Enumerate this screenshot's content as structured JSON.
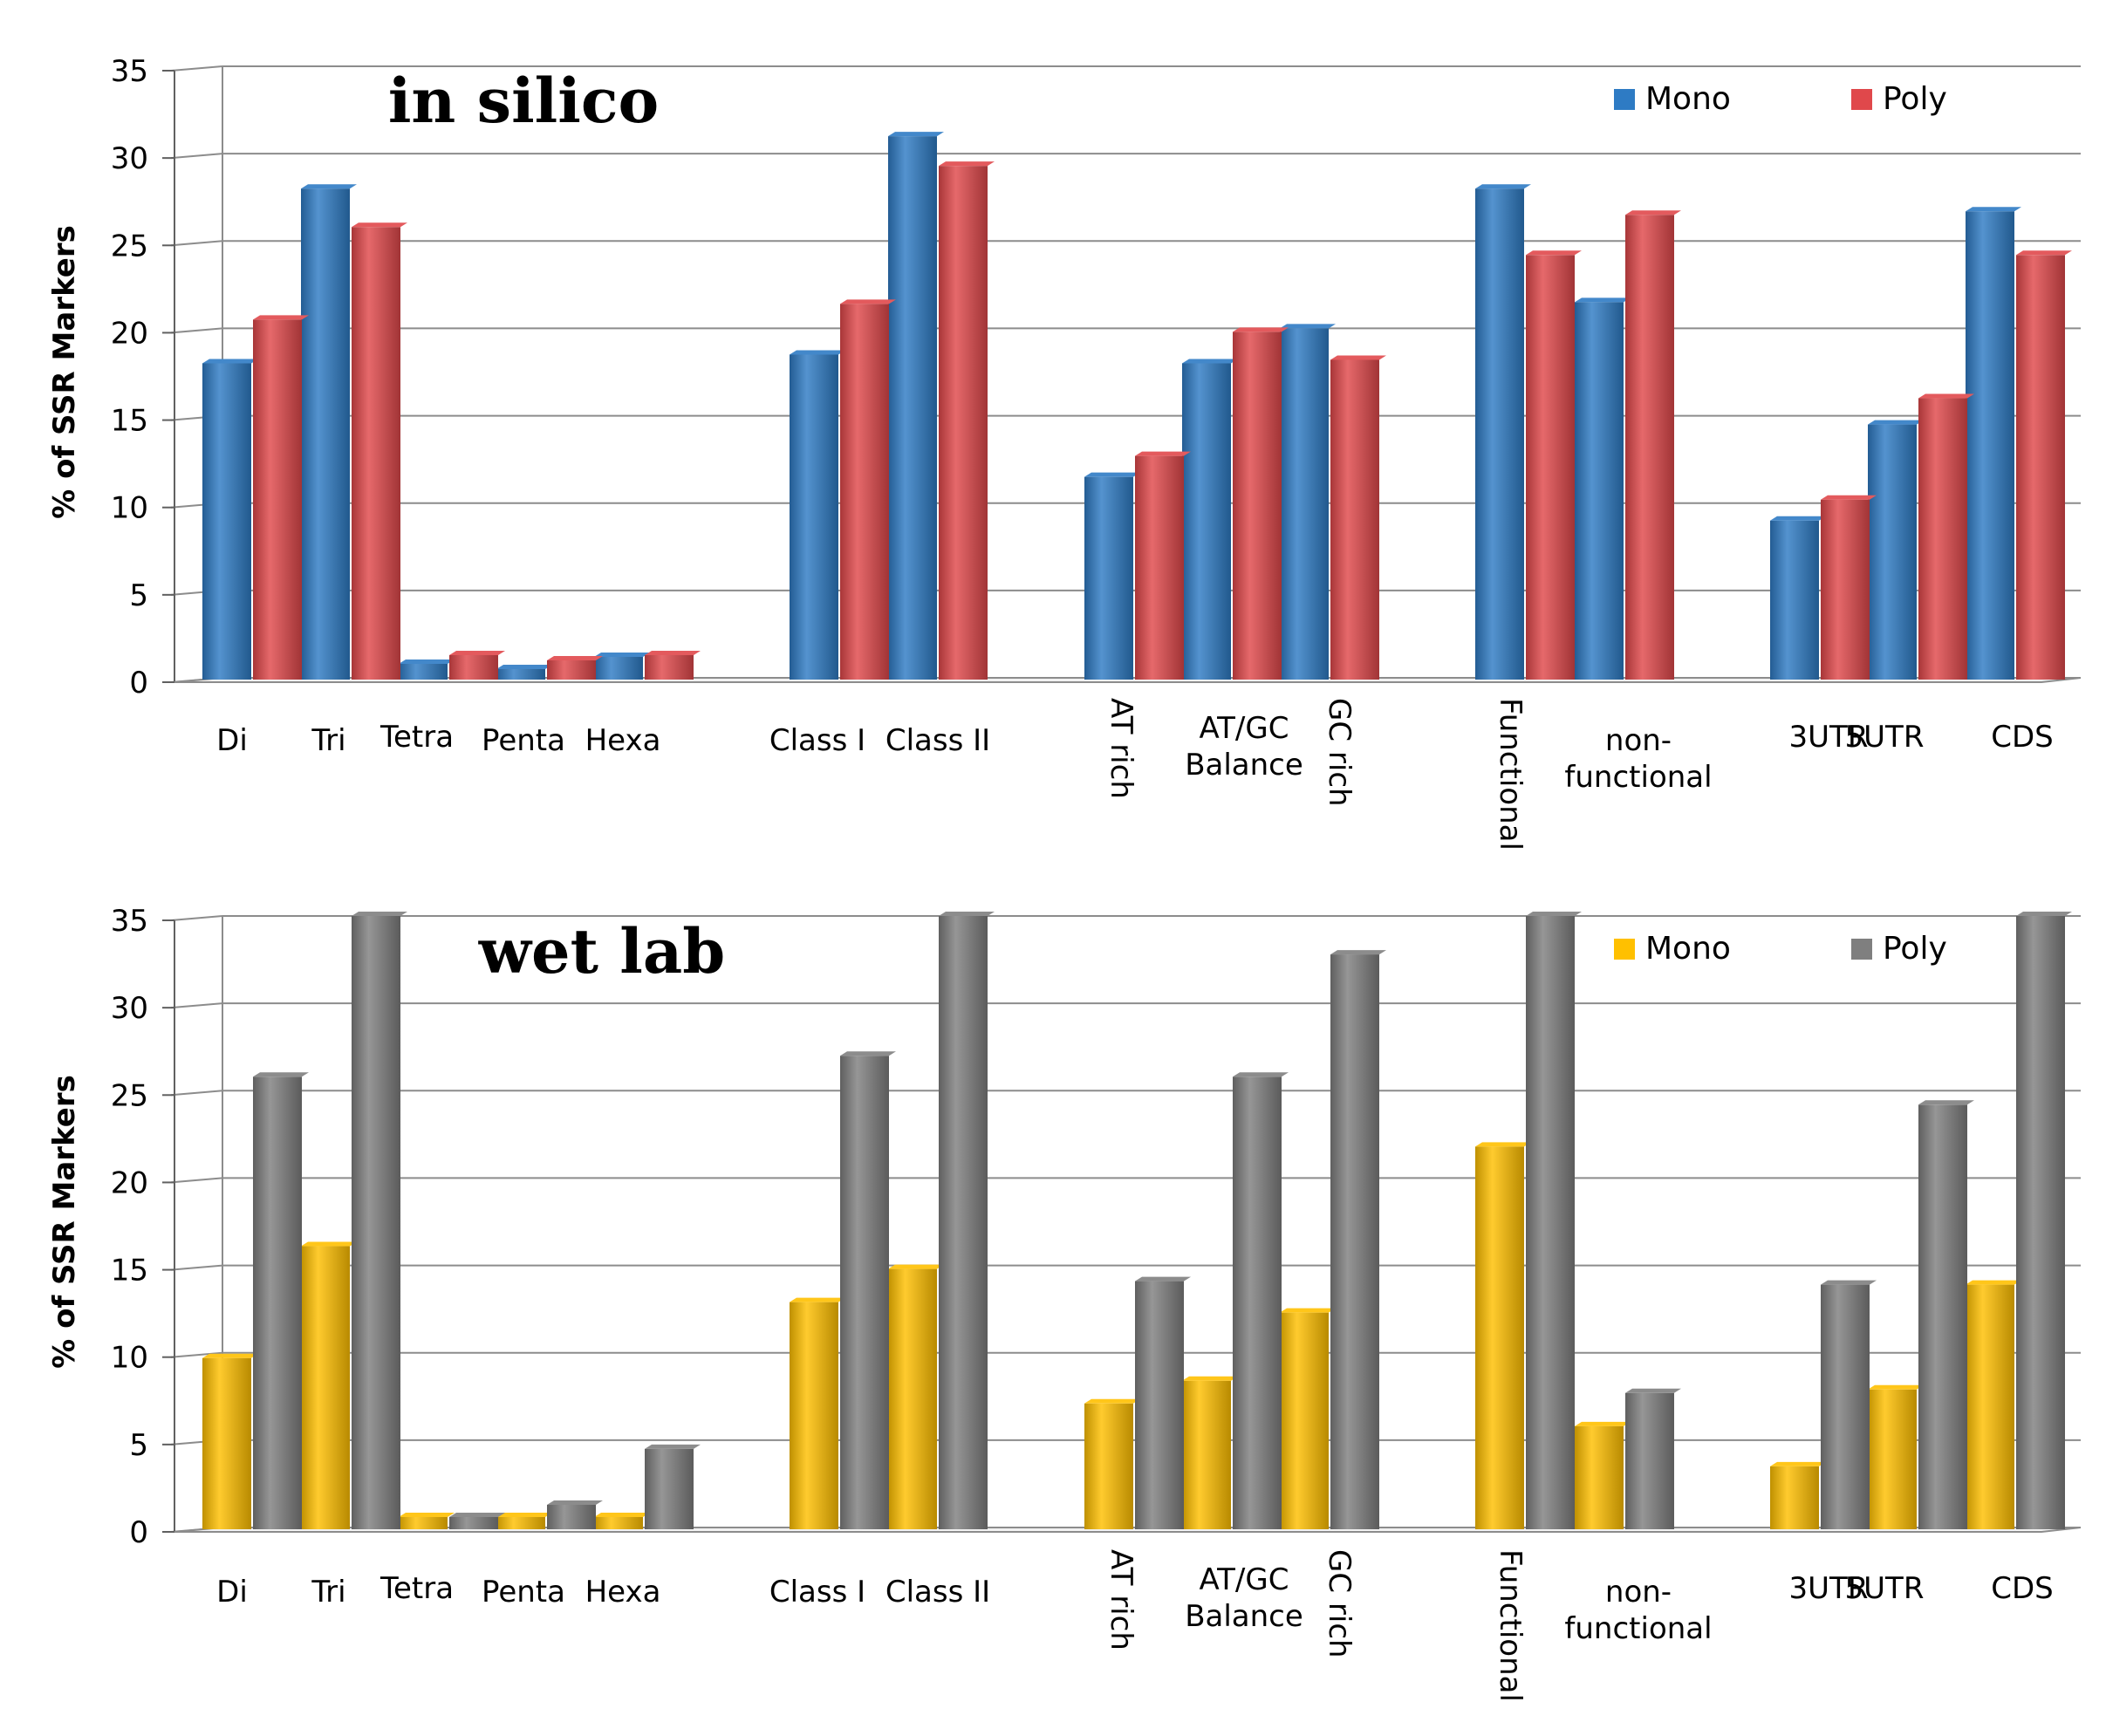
{
  "chart_data": [
    {
      "type": "bar",
      "title": "in silico",
      "ylabel": "% of SSR Markers",
      "xlabel": "",
      "ylim": [
        0,
        35
      ],
      "yticks": [
        0,
        5,
        10,
        15,
        20,
        25,
        30,
        35
      ],
      "grid": true,
      "legend_position": "top-right",
      "categories": [
        "Di",
        "Tri",
        "Tetra",
        "Penta",
        "Hexa",
        "Class I",
        "Class II",
        "AT rich",
        "AT/GC Balance",
        "GC rich",
        "Functional",
        "non-functional",
        "3UTR",
        "5UTR",
        "CDS"
      ],
      "series": [
        {
          "name": "Mono",
          "color": "#2e7bc4",
          "values": [
            18,
            28,
            0.8,
            0.5,
            1.2,
            18.5,
            31,
            11.5,
            18,
            20,
            28,
            21.5,
            9,
            14.5,
            26.7
          ]
        },
        {
          "name": "Poly",
          "color": "#e0484b",
          "values": [
            20.5,
            25.8,
            1.3,
            1.0,
            1.3,
            21.4,
            29.3,
            12.7,
            19.8,
            18.2,
            24.2,
            26.5,
            10.2,
            16,
            24.2
          ]
        }
      ]
    },
    {
      "type": "bar",
      "title": "wet lab",
      "ylabel": "% of SSR Markers",
      "xlabel": "",
      "ylim": [
        0,
        35
      ],
      "yticks": [
        0,
        5,
        10,
        15,
        20,
        25,
        30,
        35
      ],
      "grid": true,
      "legend_position": "top-right",
      "categories": [
        "Di",
        "Tri",
        "Tetra",
        "Penta",
        "Hexa",
        "Class I",
        "Class II",
        "AT rich",
        "AT/GC Balance",
        "GC rich",
        "Functional",
        "non-functional",
        "3UTR",
        "5UTR",
        "CDS"
      ],
      "series": [
        {
          "name": "Mono",
          "color": "#ffc000",
          "values": [
            9.7,
            16.1,
            0.6,
            0.6,
            0.6,
            12.9,
            14.8,
            7.1,
            8.4,
            12.3,
            21.8,
            5.8,
            3.5,
            7.9,
            13.9
          ]
        },
        {
          "name": "Poly",
          "color": "#7f7f7f",
          "values": [
            25.8,
            35,
            0.6,
            1.3,
            4.5,
            27,
            35,
            14.1,
            25.8,
            32.8,
            35,
            7.7,
            13.9,
            24.2,
            35
          ]
        }
      ]
    }
  ]
}
